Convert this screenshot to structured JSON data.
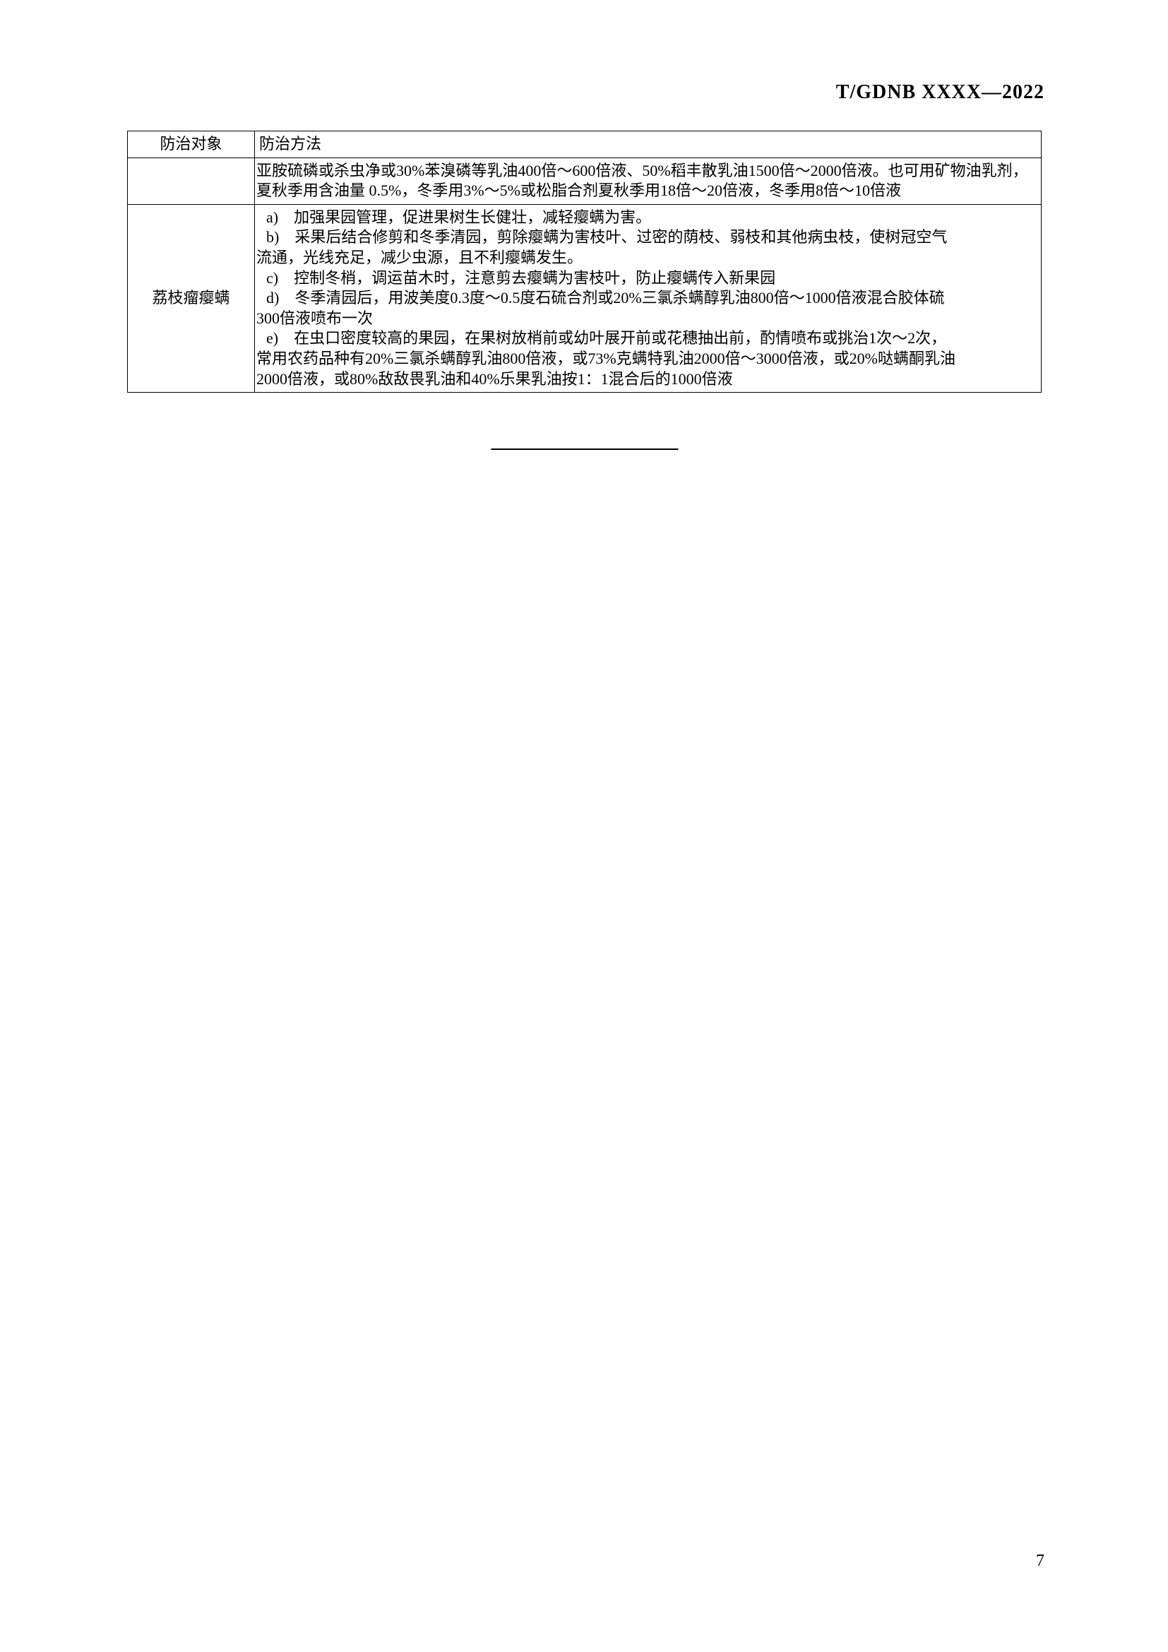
{
  "header": {
    "document_code": "T/GDNB XXXX—2022"
  },
  "table": {
    "headers": {
      "target": "防治对象",
      "method": "防治方法"
    },
    "row1": {
      "method_text": "亚胺硫磷或杀虫净或30%苯溴磷等乳油400倍～600倍液、50%稻丰散乳油1500倍～2000倍液。也可用矿物油乳剂，夏秋季用含油量 0.5%，冬季用3%～5%或松脂合剂夏秋季用18倍～20倍液，冬季用8倍～10倍液"
    },
    "row2": {
      "target": "荔枝瘤瘿螨",
      "item_a": "a)　加强果园管理，促进果树生长健壮，减轻瘿螨为害。",
      "item_b": "b)　采果后结合修剪和冬季清园，剪除瘿螨为害枝叶、过密的荫枝、弱枝和其他病虫枝，使树冠空气",
      "item_b_cont": "流通，光线充足，减少虫源，且不利瘿螨发生。",
      "item_c": "c)　控制冬梢，调运苗木时，注意剪去瘿螨为害枝叶，防止瘿螨传入新果园",
      "item_d": "d)　冬季清园后，用波美度0.3度～0.5度石硫合剂或20%三氯杀螨醇乳油800倍～1000倍液混合胶体硫",
      "item_d_cont": "300倍液喷布一次",
      "item_e": "e)　在虫口密度较高的果园，在果树放梢前或幼叶展开前或花穗抽出前，酌情喷布或挑治1次～2次，",
      "item_e_cont1": "常用农药品种有20%三氯杀螨醇乳油800倍液，或73%克螨特乳油2000倍～3000倍液，或20%哒螨酮乳油",
      "item_e_cont2": "2000倍液，或80%敌敌畏乳油和40%乐果乳油按1：1混合后的1000倍液"
    }
  },
  "footer": {
    "page_number": "7"
  },
  "colors": {
    "background": "#ffffff",
    "text": "#000000",
    "border": "#000000"
  },
  "typography": {
    "header_fontsize": 28,
    "table_fontsize": 22,
    "page_number_fontsize": 24
  }
}
